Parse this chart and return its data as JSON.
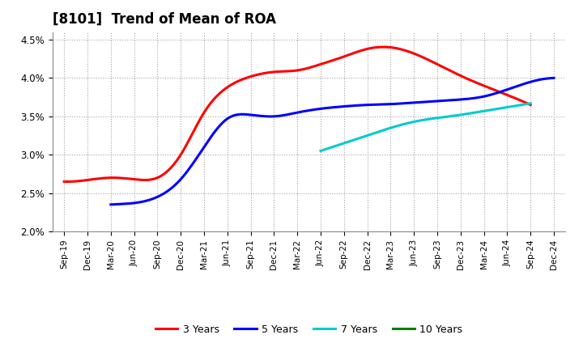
{
  "title": "[8101]  Trend of Mean of ROA",
  "ylim": [
    0.02,
    0.046
  ],
  "yticks": [
    0.02,
    0.025,
    0.03,
    0.035,
    0.04,
    0.045
  ],
  "ytick_labels": [
    "2.0%",
    "2.5%",
    "3.0%",
    "3.5%",
    "4.0%",
    "4.5%"
  ],
  "x_labels": [
    "Sep-19",
    "Dec-19",
    "Mar-20",
    "Jun-20",
    "Sep-20",
    "Dec-20",
    "Mar-21",
    "Jun-21",
    "Sep-21",
    "Dec-21",
    "Mar-22",
    "Jun-22",
    "Sep-22",
    "Dec-22",
    "Mar-23",
    "Jun-23",
    "Sep-23",
    "Dec-23",
    "Mar-24",
    "Jun-24",
    "Sep-24",
    "Dec-24"
  ],
  "x3_indices": [
    0,
    1,
    2,
    3,
    4,
    5,
    6,
    7,
    8,
    9,
    10,
    11,
    12,
    13,
    14,
    15,
    16,
    17,
    18,
    19,
    20
  ],
  "y3_vals": [
    0.0265,
    0.0267,
    0.027,
    0.0268,
    0.027,
    0.03,
    0.0355,
    0.0388,
    0.0402,
    0.0408,
    0.041,
    0.0418,
    0.0428,
    0.0438,
    0.044,
    0.0432,
    0.0418,
    0.0403,
    0.039,
    0.0378,
    0.0365
  ],
  "x5_indices": [
    2,
    3,
    4,
    5,
    6,
    7,
    8,
    9,
    10,
    11,
    12,
    13,
    14,
    15,
    16,
    17,
    18,
    19,
    20,
    21
  ],
  "y5_vals": [
    0.0235,
    0.0237,
    0.0245,
    0.0268,
    0.031,
    0.0347,
    0.0352,
    0.035,
    0.0355,
    0.036,
    0.0363,
    0.0365,
    0.0366,
    0.0368,
    0.037,
    0.0372,
    0.0376,
    0.0385,
    0.0395,
    0.04
  ],
  "x7_indices": [
    11,
    12,
    13,
    14,
    15,
    16,
    17,
    18,
    19,
    20
  ],
  "y7_vals": [
    0.0305,
    0.0315,
    0.0325,
    0.0335,
    0.0343,
    0.0348,
    0.0352,
    0.0357,
    0.0362,
    0.0367
  ],
  "x10_indices": [],
  "y10_vals": [],
  "color_3y": "#FF0000",
  "color_5y": "#0000FF",
  "color_7y": "#00CCCC",
  "color_10y": "#008000",
  "background_color": "#FFFFFF",
  "plot_bg_color": "#FFFFFF",
  "grid_color": "#999999",
  "linewidth": 2.2,
  "title_fontsize": 12,
  "legend_labels": [
    "3 Years",
    "5 Years",
    "7 Years",
    "10 Years"
  ]
}
